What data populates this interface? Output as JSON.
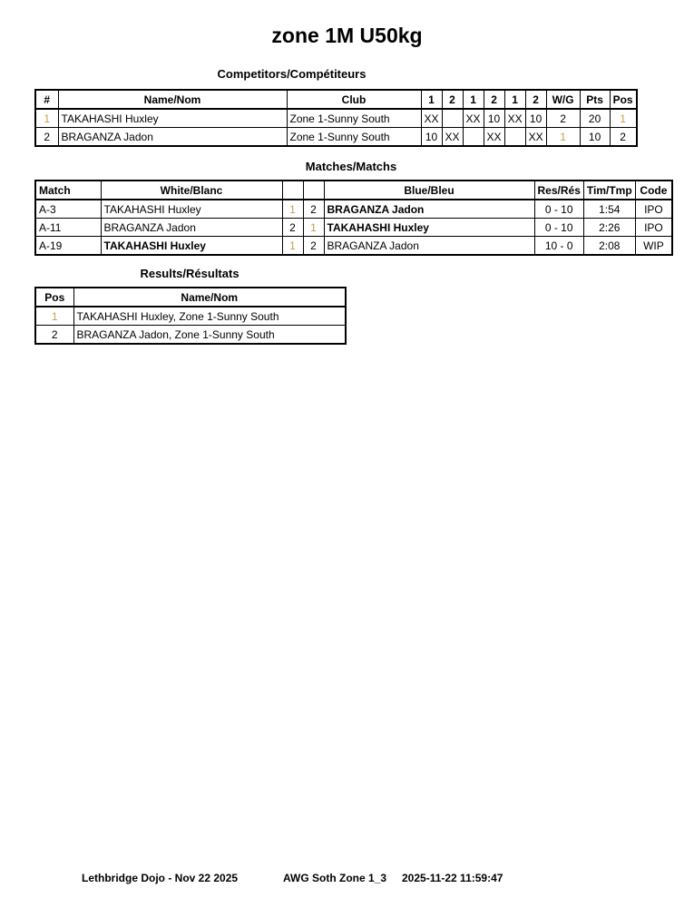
{
  "title": "zone 1M U50kg",
  "colors": {
    "highlight_one": "#C69E4F",
    "border": "#000000",
    "background": "#FFFFFF"
  },
  "competitors": {
    "caption": "Competitors/Compétiteurs",
    "headers": {
      "num": "#",
      "name": "Name/Nom",
      "club": "Club",
      "rounds": [
        "1",
        "2",
        "1",
        "2",
        "1",
        "2"
      ],
      "wg": "W/G",
      "pts": "Pts",
      "pos": "Pos"
    },
    "rows": [
      {
        "num": "1",
        "name": "TAKAHASHI Huxley",
        "club": "Zone 1-Sunny South",
        "rounds": [
          "XX",
          "",
          "XX",
          "10",
          "XX",
          "10"
        ],
        "wg": "2",
        "pts": "20",
        "pos": "1"
      },
      {
        "num": "2",
        "name": "BRAGANZA Jadon",
        "club": "Zone 1-Sunny South",
        "rounds": [
          "10",
          "XX",
          "",
          "XX",
          "",
          "XX"
        ],
        "wg": "1",
        "pts": "10",
        "pos": "2"
      }
    ]
  },
  "matches": {
    "caption": "Matches/Matchs",
    "headers": {
      "match": "Match",
      "white": "White/Blanc",
      "blue": "Blue/Bleu",
      "res": "Res/Rés",
      "time": "Tim/Tmp",
      "code": "Code"
    },
    "rows": [
      {
        "id": "A-3",
        "white": "TAKAHASHI Huxley",
        "white_bold": false,
        "white_num": "1",
        "blue_num": "2",
        "blue": "BRAGANZA Jadon",
        "blue_bold": true,
        "res": "0 - 10",
        "time": "1:54",
        "code": "IPO"
      },
      {
        "id": "A-11",
        "white": "BRAGANZA Jadon",
        "white_bold": false,
        "white_num": "2",
        "blue_num": "1",
        "blue": "TAKAHASHI Huxley",
        "blue_bold": true,
        "res": "0 - 10",
        "time": "2:26",
        "code": "IPO"
      },
      {
        "id": "A-19",
        "white": "TAKAHASHI Huxley",
        "white_bold": true,
        "white_num": "1",
        "blue_num": "2",
        "blue": "BRAGANZA Jadon",
        "blue_bold": false,
        "res": "10 - 0",
        "time": "2:08",
        "code": "WIP"
      }
    ]
  },
  "results": {
    "caption": "Results/Résultats",
    "headers": {
      "pos": "Pos",
      "name": "Name/Nom"
    },
    "rows": [
      {
        "pos": "1",
        "name": "TAKAHASHI Huxley, Zone 1-Sunny South"
      },
      {
        "pos": "2",
        "name": "BRAGANZA Jadon, Zone 1-Sunny South"
      }
    ]
  },
  "footer": {
    "venue": "Lethbridge Dojo - Nov 22 2025",
    "event": "AWG Soth Zone 1_3",
    "timestamp": "2025-11-22 11:59:47"
  }
}
